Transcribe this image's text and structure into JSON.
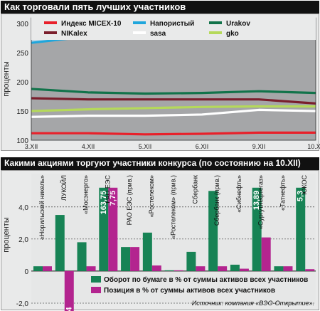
{
  "top": {
    "title": "Как торговали пять лучших участников",
    "ylabel": "проценты",
    "chart_data": {
      "type": "area",
      "x": [
        "3.XII",
        "4.XII",
        "5.XII",
        "6.XII",
        "9.XII",
        "10.XII"
      ],
      "ylim": [
        100,
        310
      ],
      "yticks": [
        100,
        150,
        200,
        250,
        300
      ],
      "series": [
        {
          "name": "Индекс MICEX-10",
          "color": "#e8202a",
          "values": [
            112,
            112,
            110,
            111,
            113,
            113
          ]
        },
        {
          "name": "Напористый",
          "color": "#1fa6dc",
          "fill": "#a5a6a8",
          "values": [
            267,
            278,
            284,
            295,
            305,
            300
          ]
        },
        {
          "name": "Urakov",
          "color": "#11734a",
          "values": [
            188,
            182,
            180,
            181,
            184,
            181
          ]
        },
        {
          "name": "NIKalex",
          "color": "#7a1e2c",
          "values": [
            172,
            170,
            170,
            170,
            170,
            163
          ]
        },
        {
          "name": "sasa",
          "color": "#ffffff",
          "values": [
            140,
            142,
            142,
            144,
            152,
            150
          ]
        },
        {
          "name": "gko",
          "color": "#b5d95a",
          "values": [
            150,
            153,
            155,
            157,
            158,
            158
          ]
        }
      ]
    }
  },
  "bottom": {
    "title": "Какими акциями торгуют участники конкурса (по состоянию на 10.XII)",
    "ylabel": "проценты",
    "source": "Источник: компания «ВЭО-Открытие».",
    "chart_data": {
      "type": "bar",
      "ylim": [
        -2.0,
        5.5
      ],
      "yticks": [
        -2.0,
        0,
        2.0,
        4.0
      ],
      "ytick_labels": [
        "-2,0",
        "0",
        "2,0",
        "4,0"
      ],
      "categories": [
        "«Норильский никель»",
        "ЛУКОЙЛ",
        "«Мосэнерго»",
        "РАО ЕЭС",
        "РАО ЕЭС (прив.)",
        "«Ростелеком»",
        "«Ростелеком» (прив.)",
        "Сбербанк",
        "Сбербанк (прив.)",
        "«Сибнефть»",
        "«Сургутнефтегаз»",
        "«Татнефть»",
        "ЮКОС"
      ],
      "series": [
        {
          "name": "Оборот по бумаге в % от суммы активов всех участников",
          "color": "#178355",
          "values": [
            0.3,
            3.5,
            1.8,
            163.75,
            1.5,
            2.4,
            0.05,
            1.2,
            5.0,
            0.4,
            13.89,
            0.3,
            5.3
          ]
        },
        {
          "name": "Позиция в % от суммы активов всех участников",
          "color": "#b3248f",
          "values": [
            0.3,
            -3.44,
            0.3,
            7.75,
            1.5,
            0.35,
            0.05,
            0.3,
            0.3,
            0.15,
            2.1,
            0.3,
            0.12
          ]
        }
      ],
      "value_labels": [
        "163,75",
        "7,75",
        "-3,44",
        "13,89"
      ]
    }
  }
}
